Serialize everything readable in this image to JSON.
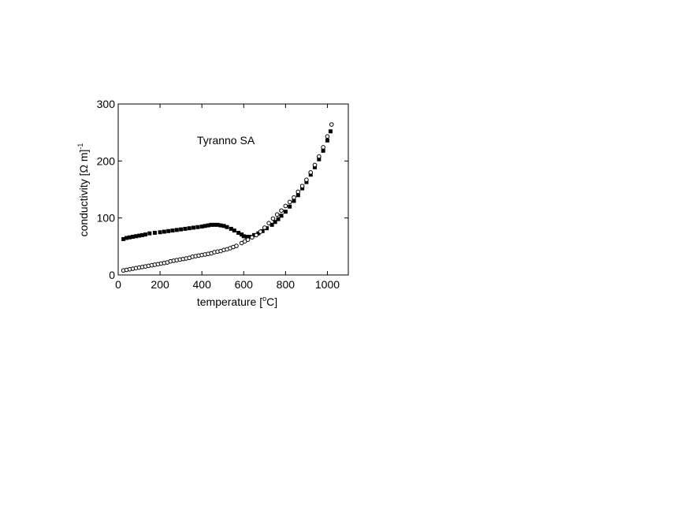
{
  "chart_data": {
    "type": "scatter",
    "annotation": "Tyranno SA",
    "xlabel": "temperature [",
    "xlabel_sup": "o",
    "xlabel_tail": "C]",
    "ylabel": "conductivity [Ω m]",
    "ylabel_sup": "-1",
    "xlim": [
      0,
      1100
    ],
    "ylim": [
      0,
      300
    ],
    "xticks": [
      "0",
      "200",
      "400",
      "600",
      "800",
      "1000"
    ],
    "xtick_values": [
      0,
      200,
      400,
      600,
      800,
      1000
    ],
    "yticks": [
      "0",
      "100",
      "200",
      "300"
    ],
    "ytick_values": [
      0,
      100,
      200,
      300
    ],
    "grid": false,
    "series": [
      {
        "marker": "filled-square",
        "color": "#000000",
        "x": [
          25,
          40,
          55,
          70,
          85,
          100,
          115,
          130,
          150,
          175,
          200,
          220,
          240,
          260,
          280,
          300,
          320,
          340,
          360,
          380,
          400,
          415,
          430,
          445,
          460,
          475,
          490,
          505,
          520,
          540,
          555,
          575,
          590,
          600,
          615,
          630,
          650,
          670,
          690,
          710,
          735,
          750,
          765,
          780,
          800,
          820,
          840,
          860,
          880,
          900,
          920,
          940,
          960,
          980,
          1000,
          1015
        ],
        "y": [
          63,
          65,
          66,
          67,
          68,
          69,
          70,
          71,
          73,
          74,
          75,
          76,
          77,
          78,
          79,
          80,
          81,
          82,
          83,
          84,
          85,
          86,
          87,
          88,
          88,
          88,
          87,
          86,
          84,
          81,
          78,
          74,
          71,
          68,
          67,
          67,
          70,
          73,
          77,
          82,
          88,
          93,
          98,
          104,
          111,
          120,
          130,
          140,
          152,
          163,
          176,
          189,
          203,
          218,
          236,
          252
        ]
      },
      {
        "marker": "open-circle",
        "color": "#000000",
        "x": [
          25,
          40,
          55,
          70,
          85,
          100,
          115,
          130,
          145,
          160,
          175,
          190,
          205,
          220,
          235,
          250,
          265,
          280,
          295,
          310,
          325,
          340,
          355,
          370,
          385,
          400,
          415,
          430,
          445,
          460,
          475,
          490,
          505,
          520,
          535,
          550,
          565,
          590,
          605,
          620,
          640,
          660,
          680,
          700,
          720,
          740,
          760,
          780,
          800,
          820,
          840,
          860,
          880,
          900,
          920,
          940,
          960,
          980,
          1000,
          1020
        ],
        "y": [
          8,
          9,
          10,
          11,
          12,
          13,
          14,
          15,
          16,
          17,
          18,
          19,
          20,
          21,
          22,
          24,
          25,
          26,
          27,
          28,
          29,
          30,
          32,
          33,
          34,
          35,
          36,
          37,
          38,
          40,
          41,
          42,
          44,
          45,
          47,
          49,
          51,
          56,
          59,
          62,
          66,
          70,
          76,
          83,
          91,
          99,
          106,
          113,
          121,
          128,
          136,
          146,
          156,
          167,
          180,
          193,
          208,
          224,
          243,
          264
        ]
      }
    ]
  }
}
